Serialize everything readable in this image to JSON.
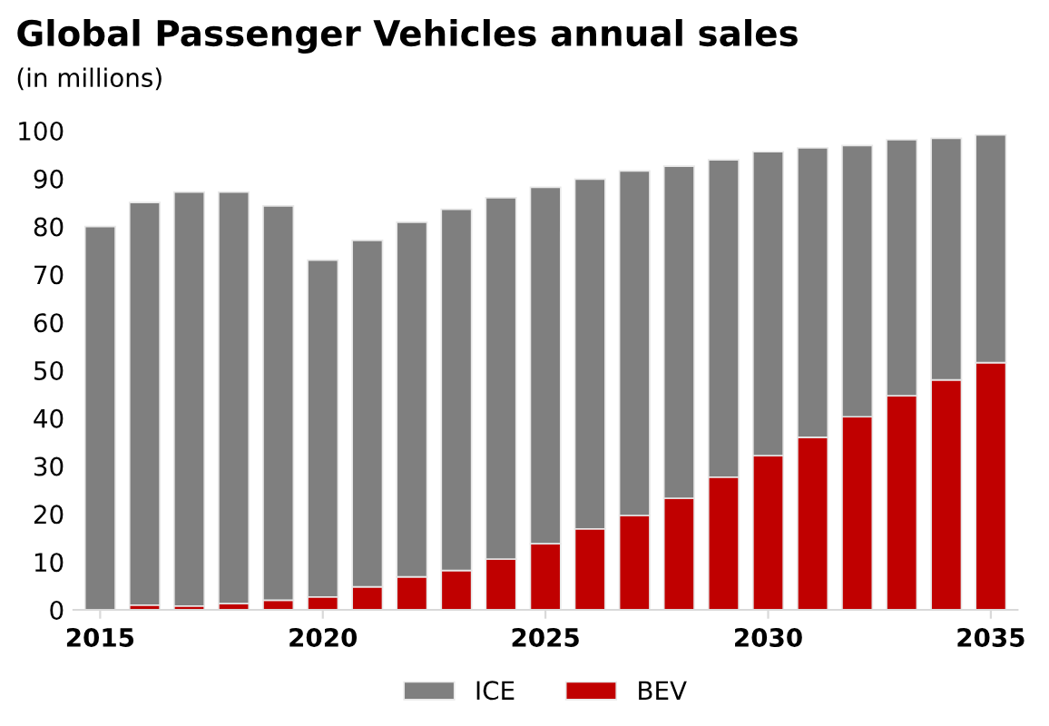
{
  "chart_data": {
    "type": "bar",
    "stacked": true,
    "title": "Global Passenger Vehicles annual sales",
    "subtitle": "(in millions)",
    "x": [
      2015,
      2016,
      2017,
      2018,
      2019,
      2020,
      2021,
      2022,
      2023,
      2024,
      2025,
      2026,
      2027,
      2028,
      2029,
      2030,
      2031,
      2032,
      2033,
      2034,
      2035
    ],
    "series": [
      {
        "name": "BEV",
        "color": "#c00000",
        "values": [
          0,
          1,
          0.8,
          1.3,
          2,
          2.7,
          4.8,
          6.9,
          8.2,
          10.6,
          13.8,
          16.9,
          19.7,
          23.3,
          27.7,
          32.2,
          36,
          40.3,
          44.7,
          48,
          51.6
        ]
      },
      {
        "name": "ICE",
        "color": "#7f7f7f",
        "values": [
          80,
          84,
          86.4,
          85.9,
          82.3,
          70.3,
          72.3,
          74,
          75.4,
          75.4,
          74.4,
          73,
          71.9,
          69.3,
          66.2,
          63.4,
          60.4,
          56.6,
          53.4,
          50.4,
          47.5
        ]
      }
    ],
    "xlim": [
      2014.4,
      2035.6
    ],
    "xticks": [
      2015,
      2020,
      2025,
      2030,
      2035
    ],
    "ylim": [
      0,
      100
    ],
    "yticks": [
      0,
      10,
      20,
      30,
      40,
      50,
      60,
      70,
      80,
      90,
      100
    ],
    "grid": false,
    "legend": "bottom"
  }
}
